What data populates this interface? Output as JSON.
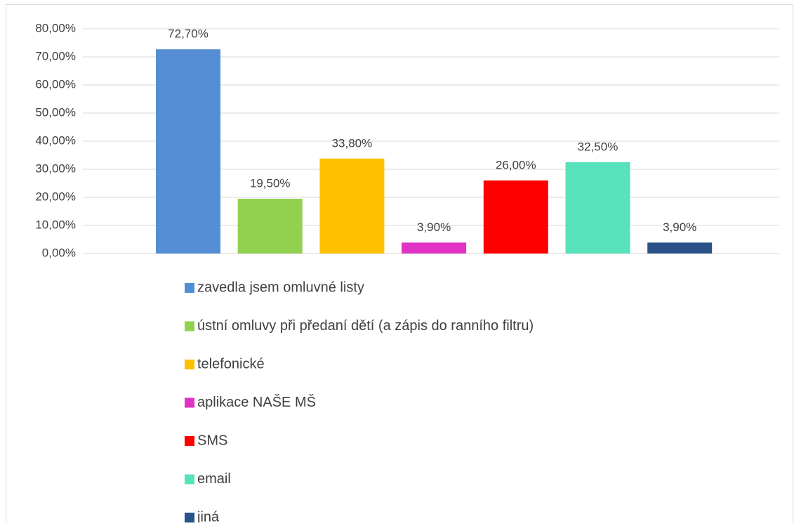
{
  "chart_data": {
    "type": "bar",
    "series": [
      {
        "name": "zavedla jsem omluvné listy",
        "color": "#558ed5",
        "values": [
          72.7
        ],
        "value_labels": [
          "72,70%"
        ]
      },
      {
        "name": "ústní omluvy při předaní dětí (a zápis do ranního filtru)",
        "color": "#92d050",
        "values": [
          19.5
        ],
        "value_labels": [
          "19,50%"
        ]
      },
      {
        "name": "telefonické",
        "color": "#ffc000",
        "values": [
          33.8
        ],
        "value_labels": [
          "33,80%"
        ]
      },
      {
        "name": "aplikace NAŠE MŠ",
        "color": "#e033c4",
        "values": [
          3.9
        ],
        "value_labels": [
          "3,90%"
        ]
      },
      {
        "name": "SMS",
        "color": "#ff0000",
        "values": [
          26.0
        ],
        "value_labels": [
          "26,00%"
        ]
      },
      {
        "name": "email",
        "color": "#58e2bb",
        "values": [
          32.5
        ],
        "value_labels": [
          "32,50%"
        ]
      },
      {
        "name": "jiná",
        "color": "#2a5289",
        "values": [
          3.9
        ],
        "value_labels": [
          "3,90%"
        ]
      }
    ],
    "ylim": [
      0,
      80
    ],
    "yticks": [
      {
        "value": 0,
        "label": "0,00%"
      },
      {
        "value": 10,
        "label": "10,00%"
      },
      {
        "value": 20,
        "label": "20,00%"
      },
      {
        "value": 30,
        "label": "30,00%"
      },
      {
        "value": 40,
        "label": "40,00%"
      },
      {
        "value": 50,
        "label": "50,00%"
      },
      {
        "value": 60,
        "label": "60,00%"
      },
      {
        "value": 70,
        "label": "70,00%"
      },
      {
        "value": 80,
        "label": "80,00%"
      }
    ],
    "grid": true,
    "legend": "bottom"
  }
}
